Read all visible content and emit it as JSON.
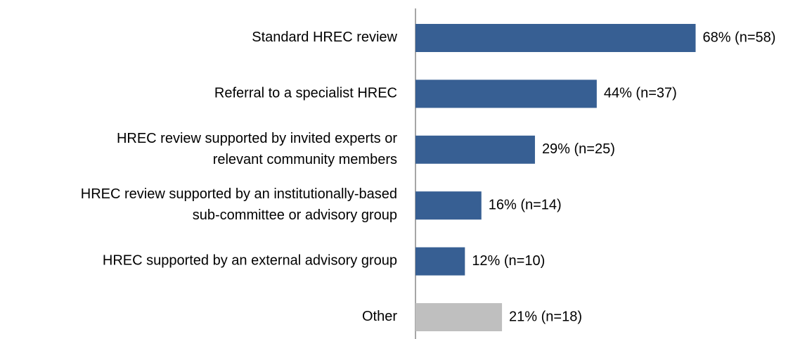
{
  "chart_data": {
    "type": "bar",
    "orientation": "horizontal",
    "categories": [
      "Standard HREC review",
      "Referral to a specialist HREC",
      "HREC review supported by invited experts or\nrelevant community members",
      "HREC review supported by an institutionally-based\nsub-committee or advisory group",
      "HREC supported by an external advisory group",
      "Other"
    ],
    "values": [
      68,
      44,
      29,
      16,
      12,
      21
    ],
    "value_labels": [
      "68% (n=58)",
      "44% (n=37)",
      "29% (n=25)",
      "16% (n=14)",
      "12% (n=10)",
      "21% (n=18)"
    ],
    "colors": [
      "#375f93",
      "#375f93",
      "#375f93",
      "#375f93",
      "#375f93",
      "#bfbfbf"
    ]
  }
}
